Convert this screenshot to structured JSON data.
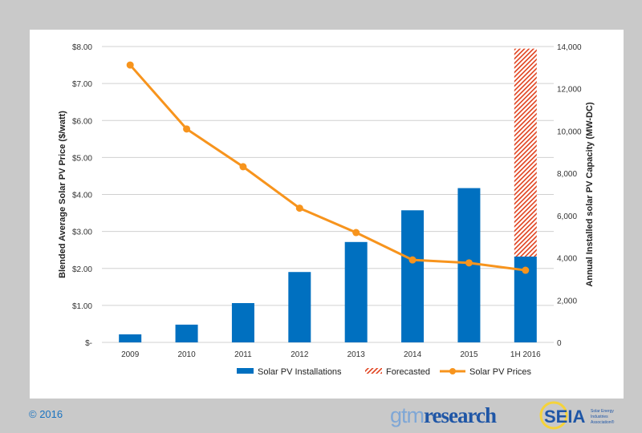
{
  "chart_data": {
    "type": "bar+line",
    "categories": [
      "2009",
      "2010",
      "2011",
      "2012",
      "2013",
      "2014",
      "2015",
      "1H 2016"
    ],
    "series": [
      {
        "name": "Solar PV Installations",
        "type": "bar",
        "axis": "right",
        "color": "#0070c0",
        "values": [
          380,
          840,
          1860,
          3330,
          4750,
          6250,
          7300,
          4060
        ]
      },
      {
        "name": "Forecasted",
        "type": "bar-stacked-hatched",
        "axis": "right",
        "color": "#e0401c",
        "values": [
          0,
          0,
          0,
          0,
          0,
          0,
          0,
          9840
        ]
      },
      {
        "name": "Solar PV Prices",
        "type": "line",
        "axis": "left",
        "color": "#f7941d",
        "values": [
          7.5,
          5.77,
          4.75,
          3.63,
          2.97,
          2.23,
          2.15,
          1.95
        ]
      }
    ],
    "ylabel": "Blended Average Solar PV Price ($/watt)",
    "y2label": "Annual Installed solar PV Capacity (MW-DC)",
    "ylim": [
      0,
      8
    ],
    "y2lim": [
      0,
      14000
    ],
    "yticks": [
      "$-",
      "$1.00",
      "$2.00",
      "$3.00",
      "$4.00",
      "$5.00",
      "$6.00",
      "$7.00",
      "$8.00"
    ],
    "y2ticks": [
      "0",
      "2,000",
      "4,000",
      "6,000",
      "8,000",
      "10,000",
      "12,000",
      "14,000"
    ],
    "grid": true,
    "legend": "bottom"
  },
  "footer": {
    "copyright": "© 2016",
    "logo1a": "gtm",
    "logo1b": "research",
    "logo2": "SEIA",
    "logo2_sub": "Solar Energy Industries Association"
  }
}
